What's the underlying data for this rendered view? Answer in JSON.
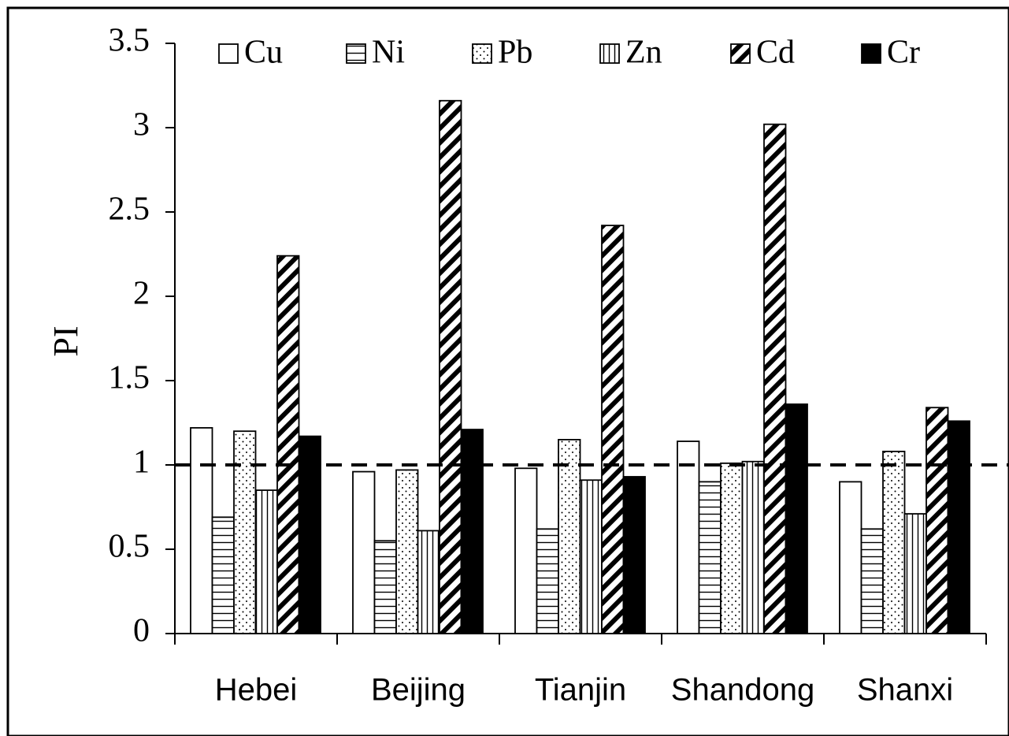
{
  "chart_data": {
    "type": "bar",
    "title": "",
    "xlabel": "",
    "ylabel": "PI",
    "ylim": [
      0,
      3.5
    ],
    "yticks": [
      "0",
      "0.5",
      "1",
      "1.5",
      "2",
      "2.5",
      "3",
      "3.5"
    ],
    "categories": [
      "Hebei",
      "Beijing",
      "Tianjin",
      "Shandong",
      "Shanxi"
    ],
    "series": [
      {
        "name": "Cu",
        "pattern": "blank",
        "values": [
          1.22,
          0.96,
          0.98,
          1.14,
          0.9
        ]
      },
      {
        "name": "Ni",
        "pattern": "horizontal-lines",
        "values": [
          0.69,
          0.55,
          0.62,
          0.9,
          0.62
        ]
      },
      {
        "name": "Pb",
        "pattern": "dots",
        "values": [
          1.2,
          0.97,
          1.15,
          1.01,
          1.08
        ]
      },
      {
        "name": "Zn",
        "pattern": "vertical-lines",
        "values": [
          0.85,
          0.61,
          0.91,
          1.02,
          0.71
        ]
      },
      {
        "name": "Cd",
        "pattern": "diagonal-hatch",
        "values": [
          2.24,
          3.16,
          2.42,
          3.02,
          1.34
        ]
      },
      {
        "name": "Cr",
        "pattern": "solid-black",
        "values": [
          1.17,
          1.21,
          0.93,
          1.36,
          1.26
        ]
      }
    ],
    "reference_line": {
      "value": 1,
      "style": "dashed"
    },
    "legend_position": "top",
    "grid": false,
    "colors": {
      "fill": "#ffffff",
      "stroke": "#000000",
      "solid": "#000000"
    }
  }
}
